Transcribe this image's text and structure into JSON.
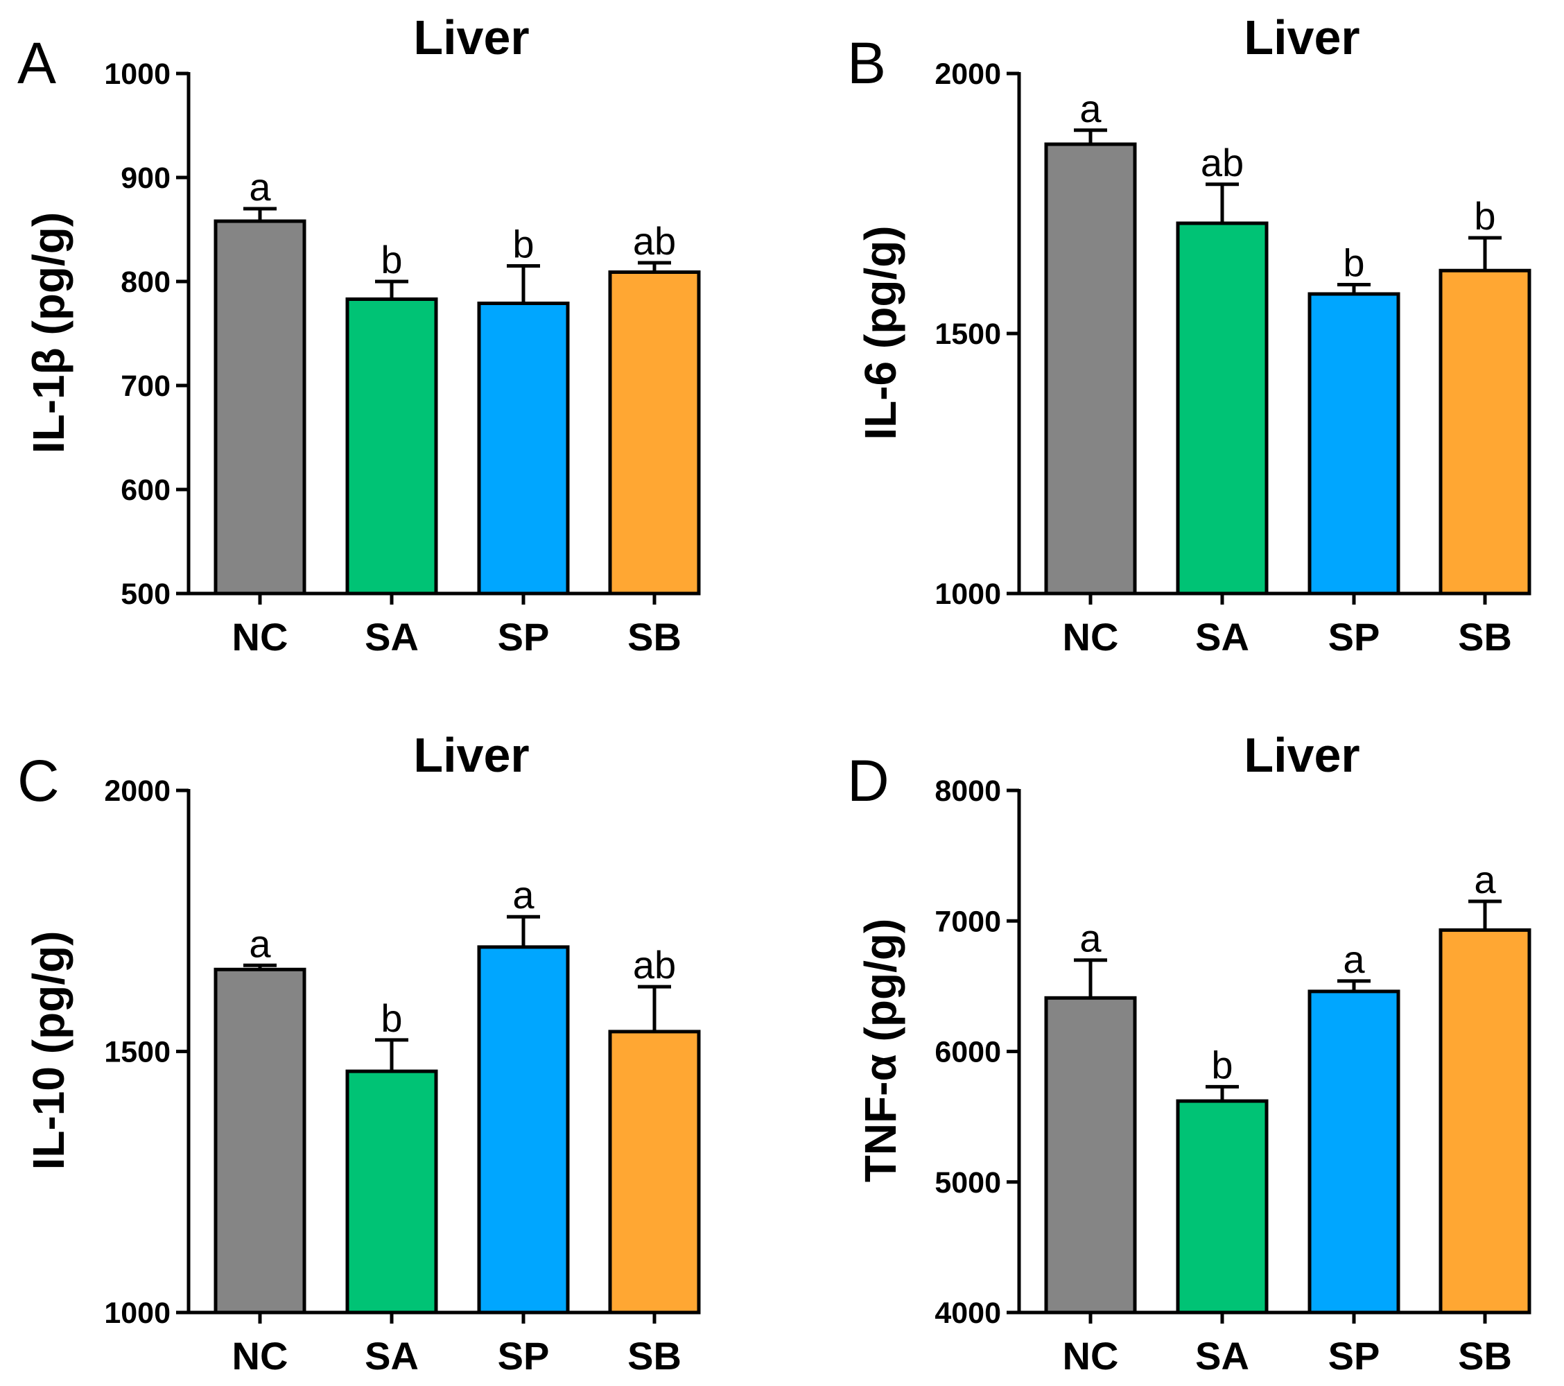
{
  "colors": {
    "NC": "#858585",
    "SA": "#00c375",
    "SP": "#00a6ff",
    "SB": "#ffa733",
    "axis": "#000000"
  },
  "chart_data": [
    {
      "panel": "A",
      "type": "bar",
      "title": "Liver",
      "ylabel": "IL-1β (pg/g)",
      "xlabel": "",
      "categories": [
        "NC",
        "SA",
        "SP",
        "SB"
      ],
      "values": [
        858,
        783,
        779,
        809
      ],
      "errors": [
        12,
        17,
        36,
        9
      ],
      "significance": [
        "a",
        "b",
        "b",
        "ab"
      ],
      "ylim": [
        500,
        1000
      ],
      "yticks": [
        500,
        600,
        700,
        800,
        900,
        1000
      ]
    },
    {
      "panel": "B",
      "type": "bar",
      "title": "Liver",
      "ylabel": "IL-6 (pg/g)",
      "xlabel": "",
      "categories": [
        "NC",
        "SA",
        "SP",
        "SB"
      ],
      "values": [
        1864,
        1712,
        1576,
        1621
      ],
      "errors": [
        27,
        75,
        18,
        63
      ],
      "significance": [
        "a",
        "ab",
        "b",
        "b"
      ],
      "ylim": [
        1000,
        2000
      ],
      "yticks": [
        1000,
        1500,
        2000
      ]
    },
    {
      "panel": "C",
      "type": "bar",
      "title": "Liver",
      "ylabel": "IL-10 (pg/g)",
      "xlabel": "",
      "categories": [
        "NC",
        "SA",
        "SP",
        "SB"
      ],
      "values": [
        1657,
        1462,
        1700,
        1538
      ],
      "errors": [
        8,
        60,
        58,
        86
      ],
      "significance": [
        "a",
        "b",
        "a",
        "ab"
      ],
      "ylim": [
        1000,
        2000
      ],
      "yticks": [
        1000,
        1500,
        2000
      ]
    },
    {
      "panel": "D",
      "type": "bar",
      "title": "Liver",
      "ylabel": "TNF-α (pg/g)",
      "xlabel": "",
      "categories": [
        "NC",
        "SA",
        "SP",
        "SB"
      ],
      "values": [
        6410,
        5620,
        6460,
        6930
      ],
      "errors": [
        290,
        110,
        80,
        220
      ],
      "significance": [
        "a",
        "b",
        "a",
        "a"
      ],
      "ylim": [
        4000,
        8000
      ],
      "yticks": [
        4000,
        5000,
        6000,
        7000,
        8000
      ]
    }
  ]
}
